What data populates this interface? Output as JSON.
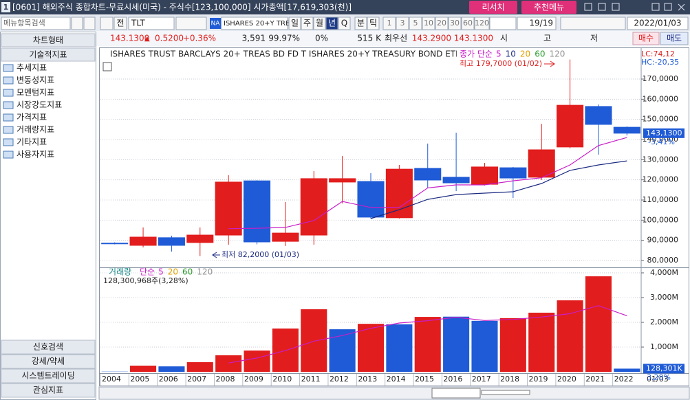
{
  "window": {
    "icon": "1",
    "title": "[0601] 해외주식 종합차트-무료시세(미국) - 주식수[123,100,000] 시가총액[17,619,303(천)]",
    "buttons": [
      "리서치",
      "추천메뉴"
    ]
  },
  "toolbar": {
    "search": "메뉴항목검색",
    "all": "전",
    "symbol": "TLT",
    "market": "NA",
    "name": "ISHARES 20+Y TRE",
    "periods": [
      "일",
      "주",
      "월",
      "년",
      "Q",
      "분",
      "틱"
    ],
    "selected_period": "년",
    "intervals": [
      "1",
      "3",
      "5",
      "10",
      "20",
      "30",
      "60",
      "120"
    ],
    "count": "19/19",
    "date": "2022/01/03"
  },
  "quote": {
    "price": "143.1300",
    "arrow": "▲",
    "change": "0.5200",
    "rate": "+0.36%",
    "volume": "3,591",
    "ratio": "99.97%",
    "pct": "0%",
    "amount": "515 K",
    "best_label": "최우선",
    "ask": "143.2900",
    "bid": "143.1300",
    "open": "시",
    "high": "고",
    "low": "저",
    "buy": "매수",
    "sell": "매도"
  },
  "sidebar": {
    "tabs": [
      "차트형태",
      "기술적지표"
    ],
    "items": [
      "추세지표",
      "변동성지표",
      "모멘텀지표",
      "시장강도지표",
      "가격지표",
      "거래량지표",
      "기타지표",
      "사용자지표"
    ],
    "bottom": [
      "신호검색",
      "강세/약세",
      "시스템트레이딩",
      "관심지표"
    ]
  },
  "chart_data": [
    {
      "type": "candlestick",
      "title": "ISHARES TRUST BARCLAYS 20+ TREAS BD FD T  ISHARES 20+Y TREASURY BOND ETF",
      "categories": [
        "2004",
        "2005",
        "2006",
        "2007",
        "2008",
        "2009",
        "2010",
        "2011",
        "2012",
        "2013",
        "2014",
        "2015",
        "2016",
        "2017",
        "2018",
        "2019",
        "2020",
        "2021",
        "2022"
      ],
      "open": [
        88.6,
        87.5,
        91.3,
        88.9,
        92.6,
        119.5,
        89.5,
        92.6,
        118.9,
        119.2,
        101.2,
        125.7,
        121.3,
        117.8,
        126.0,
        121.3,
        136.3,
        156.4,
        146.1
      ],
      "high": [
        89.0,
        96.4,
        92.3,
        96.4,
        122.3,
        119.8,
        109.0,
        124.3,
        131.8,
        123.3,
        127.4,
        138.0,
        143.4,
        128.4,
        126.4,
        147.8,
        179.7,
        157.4,
        146.5
      ],
      "low": [
        88.0,
        86.5,
        84.4,
        82.2,
        87.8,
        88.0,
        87.2,
        87.8,
        108.3,
        100.8,
        100.8,
        115.8,
        114.4,
        117.2,
        111.0,
        119.9,
        135.6,
        132.5,
        142.0
      ],
      "close": [
        88.4,
        91.6,
        87.5,
        92.6,
        118.9,
        89.2,
        93.6,
        120.6,
        120.6,
        101.5,
        125.3,
        119.9,
        118.5,
        126.4,
        120.9,
        134.9,
        157.0,
        147.5,
        143.13
      ],
      "up_color": "#e21d1d",
      "down_color": "#1f5bd6",
      "ma_label": "종가 단순",
      "series": [
        {
          "name": "5",
          "color": "#c81fc8",
          "values": [
            null,
            null,
            null,
            null,
            95.8,
            96.0,
            96.4,
            99.8,
            109.3,
            106.3,
            106.3,
            116.0,
            117.5,
            117.5,
            119.5,
            121.0,
            127.4,
            137.0,
            141.0
          ]
        },
        {
          "name": "10",
          "color": "#1a2a80",
          "values": [
            null,
            null,
            null,
            null,
            null,
            null,
            null,
            null,
            null,
            100.8,
            105.2,
            110.3,
            112.7,
            113.4,
            114.1,
            118.2,
            124.7,
            127.4,
            129.4
          ]
        }
      ],
      "legend_extra": [
        {
          "name": "20",
          "color": "#e0a000"
        },
        {
          "name": "60",
          "color": "#2a9a2a"
        },
        {
          "name": "120",
          "color": "#909090"
        }
      ],
      "ylim": [
        76.93,
        184.67
      ],
      "yticks": [
        {
          "value": 80,
          "label": "80,0000"
        },
        {
          "value": 90,
          "label": "90,0000"
        },
        {
          "value": 100,
          "label": "100,0000"
        },
        {
          "value": 110,
          "label": "110,0000"
        },
        {
          "value": 120,
          "label": "120,0000"
        },
        {
          "value": 130,
          "label": "130,0000"
        },
        {
          "value": 140,
          "label": "140,0000"
        },
        {
          "value": 150,
          "label": "150,0000"
        },
        {
          "value": 160,
          "label": "160,0000"
        },
        {
          "value": 170,
          "label": "170,0000"
        }
      ],
      "grid": true,
      "annotations": {
        "high": "최고 179,7000 (01/02)",
        "low": "최저 82,2000 (01/03)",
        "lc": "LC:74,12",
        "hc": "HC:-20,35",
        "change": "-3,41%"
      },
      "last": {
        "value": 143.13,
        "label": "143,1300"
      },
      "x_end_label": "01/03"
    },
    {
      "type": "bar",
      "title": "거래량",
      "subtitle": "128,300,968주(3,28%)",
      "categories": [
        "2004",
        "2005",
        "2006",
        "2007",
        "2008",
        "2009",
        "2010",
        "2011",
        "2012",
        "2013",
        "2014",
        "2015",
        "2016",
        "2017",
        "2018",
        "2019",
        "2020",
        "2021",
        "2022"
      ],
      "values": [
        8000000,
        250000000,
        220000000,
        390000000,
        670000000,
        860000000,
        1750000000,
        2530000000,
        1720000000,
        1940000000,
        1920000000,
        2220000000,
        2230000000,
        2060000000,
        2170000000,
        2390000000,
        2890000000,
        3860000000,
        128300968
      ],
      "colors": [
        "#1f5bd6",
        "#e21d1d",
        "#1f5bd6",
        "#e21d1d",
        "#e21d1d",
        "#e21d1d",
        "#e21d1d",
        "#e21d1d",
        "#1f5bd6",
        "#e21d1d",
        "#1f5bd6",
        "#e21d1d",
        "#1f5bd6",
        "#1f5bd6",
        "#e21d1d",
        "#e21d1d",
        "#e21d1d",
        "#e21d1d",
        "#1f5bd6"
      ],
      "ma_label": "단순",
      "series": [
        {
          "name": "5",
          "color": "#c81fc8",
          "values": [
            null,
            null,
            null,
            null,
            356000000,
            558000000,
            858000000,
            1240000000,
            1466000000,
            1758000000,
            1972000000,
            2066000000,
            2206000000,
            2074000000,
            2118000000,
            2214000000,
            2350000000,
            2676000000,
            2268000000
          ]
        }
      ],
      "legend_extra": [
        {
          "name": "20",
          "color": "#e0a000"
        },
        {
          "name": "60",
          "color": "#2a9a2a"
        },
        {
          "name": "120",
          "color": "#909090"
        }
      ],
      "ylim": [
        0,
        4139000000
      ],
      "yticks": [
        {
          "value": 1000000000,
          "label": "1,000M"
        },
        {
          "value": 2000000000,
          "label": "2,000M"
        },
        {
          "value": 3000000000,
          "label": "3,000M"
        },
        {
          "value": 4000000000,
          "label": "4,000M"
        }
      ],
      "grid": true,
      "last": {
        "value": 128300968,
        "label": "128,301K"
      },
      "change": "3,28%"
    }
  ]
}
